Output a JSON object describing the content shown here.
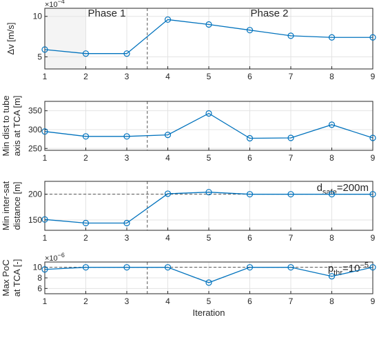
{
  "chart_data": [
    {
      "type": "line",
      "ylabel": "Δv [m/s]",
      "exponent": "×10^-4",
      "x": [
        1,
        2,
        3,
        4,
        5,
        6,
        7,
        8,
        9
      ],
      "series": [
        {
          "values": [
            5.9,
            5.4,
            5.4,
            9.6,
            9.0,
            8.3,
            7.6,
            7.4,
            7.4
          ]
        }
      ],
      "ylim": [
        3.5,
        11.0
      ],
      "yticks": [
        5,
        10
      ],
      "xlim": [
        1,
        9
      ],
      "grid": true,
      "phase_boundary_x": 3.5,
      "phase_labels": [
        "Phase 1",
        "Phase 2"
      ],
      "phase1_shaded": true
    },
    {
      "type": "line",
      "ylabel": "Min dist to tube axis at TCA [m]",
      "x": [
        1,
        2,
        3,
        4,
        5,
        6,
        7,
        8,
        9
      ],
      "series": [
        {
          "values": [
            295,
            282,
            282,
            286,
            343,
            277,
            278,
            313,
            278
          ]
        }
      ],
      "ylim": [
        245,
        375
      ],
      "yticks": [
        250,
        300,
        350
      ],
      "xlim": [
        1,
        9
      ],
      "grid": true,
      "phase_boundary_x": 3.5
    },
    {
      "type": "line",
      "ylabel": "Min inter-sat distance [m]",
      "x": [
        1,
        2,
        3,
        4,
        5,
        6,
        7,
        8,
        9
      ],
      "series": [
        {
          "values": [
            151,
            144,
            144,
            201,
            204,
            200,
            200,
            200,
            200
          ]
        }
      ],
      "ylim": [
        130,
        225
      ],
      "yticks": [
        150,
        200
      ],
      "xlim": [
        1,
        9
      ],
      "grid": true,
      "phase_boundary_x": 3.5,
      "threshold": {
        "value": 200,
        "label": "d",
        "label_sub": "safe",
        "label_rest": "=200m"
      }
    },
    {
      "type": "line",
      "ylabel": "Max PoC at TCA [-]",
      "exponent": "×10^-6",
      "x": [
        1,
        2,
        3,
        4,
        5,
        6,
        7,
        8,
        9
      ],
      "series": [
        {
          "values": [
            9.6,
            10.0,
            10.0,
            10.0,
            7.1,
            10.0,
            10.0,
            8.3,
            10.0
          ]
        }
      ],
      "ylim": [
        5,
        11
      ],
      "yticks": [
        6,
        8,
        10
      ],
      "xlim": [
        1,
        9
      ],
      "grid": true,
      "phase_boundary_x": 3.5,
      "threshold": {
        "value": 10,
        "label": "p",
        "label_sub": "thr",
        "label_rest": "=10",
        "label_sup": "−5"
      },
      "xlabel": "Iteration"
    }
  ]
}
